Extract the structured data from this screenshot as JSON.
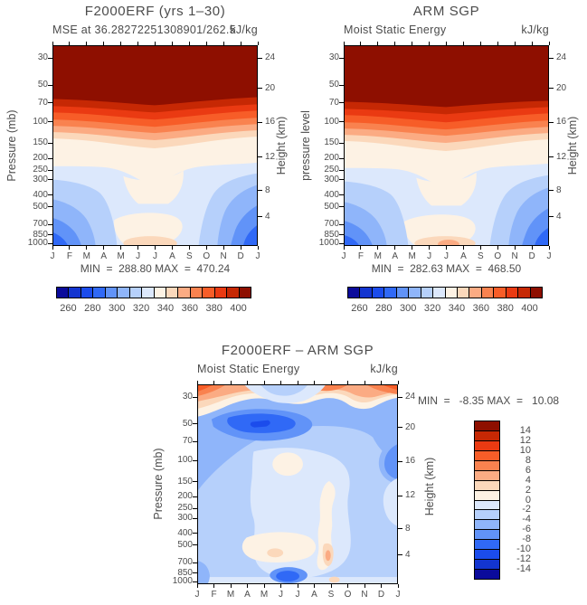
{
  "style": {
    "text_color": "#4c4c4c",
    "axis_color": "#000000",
    "background": "#ffffff",
    "palette": [
      "#0b0b9b",
      "#1335d0",
      "#1b4cec",
      "#3069f6",
      "#6193f8",
      "#8fb5fa",
      "#b6d0fb",
      "#dce8fc",
      "#fdf2e4",
      "#fbd8bb",
      "#fbab83",
      "#f9824f",
      "#f75d28",
      "#ea3a12",
      "#c62804",
      "#8e0f00"
    ]
  },
  "axes": {
    "pressure_ticks": [
      30,
      50,
      70,
      100,
      150,
      200,
      250,
      300,
      400,
      500,
      700,
      850,
      1000
    ],
    "height_ticks": [
      24,
      20,
      16,
      12,
      8,
      4
    ],
    "months": [
      "J",
      "F",
      "M",
      "A",
      "M",
      "J",
      "J",
      "A",
      "S",
      "O",
      "N",
      "D",
      "J"
    ]
  },
  "colorbars": {
    "mse_labels": [
      "260",
      "280",
      "300",
      "320",
      "340",
      "360",
      "380",
      "400"
    ],
    "diff_labels": [
      "14",
      "12",
      "10",
      "8",
      "6",
      "4",
      "2",
      "0",
      "-2",
      "-4",
      "-6",
      "-8",
      "-10",
      "-12",
      "-14"
    ]
  },
  "panels": {
    "top_left": {
      "title": "F2000ERF (yrs 1–30)",
      "subtitle_left": "MSE at 36.28272251308901/262.5",
      "subtitle_right": "kJ/kg",
      "ylabel_left": "Pressure (mb)",
      "ylabel_right": "Height (km)",
      "min_max": "MIN  =  288.80 MAX  =  470.24"
    },
    "top_right": {
      "title": "ARM SGP",
      "subtitle_left": "Moist Static Energy",
      "subtitle_right": "kJ/kg",
      "ylabel_left": "pressure level",
      "ylabel_right": "Height (km)",
      "min_max": "MIN  =  282.63 MAX  =  468.50"
    },
    "bottom": {
      "title": "F2000ERF – ARM SGP",
      "subtitle_left": "Moist Static Energy",
      "subtitle_right": "kJ/kg",
      "ylabel_left": "Pressure (mb)",
      "ylabel_right": "Height (km)",
      "min_max": "MIN  =   -8.35 MAX  =   10.08"
    }
  },
  "chart_data": [
    {
      "type": "contour",
      "title": "F2000ERF (yrs 1–30)",
      "subtitle": "MSE at 36.28272251308901/262.5",
      "units": "kJ/kg",
      "x_ticklabels": [
        "J",
        "F",
        "M",
        "A",
        "M",
        "J",
        "J",
        "A",
        "S",
        "O",
        "N",
        "D",
        "J"
      ],
      "ylabel_left": "Pressure (mb)",
      "ylabel_right": "Height (km)",
      "y_ticks_pressure_mb": [
        30,
        50,
        70,
        100,
        150,
        200,
        250,
        300,
        400,
        500,
        700,
        850,
        1000
      ],
      "y_ticks_height_km": [
        24,
        20,
        16,
        12,
        8,
        4
      ],
      "y_scale": "log-pressure, 1000 mb at bottom",
      "levels": [
        260,
        270,
        280,
        290,
        300,
        310,
        320,
        330,
        340,
        350,
        360,
        370,
        380,
        390,
        400
      ],
      "min": 288.8,
      "max": 470.24,
      "legend": "horizontal colorbar, 16 cells, blue(260)-to-red(400)",
      "field_summary": "MSE > 400 above ~60 mb (dark red cap over top ~30% of panel); banded decrease 400→340 between ~60 and 200 mb; ~330-340 (cream) column mid-troposphere widening in summer months and reaching the surface; 290-310 (blue) lobes in the lower troposphere during winter months at both left and right edges, minima ~289 near 850 mb; weak ~340-350 (peach) surface maximum centered on J-A"
    },
    {
      "type": "contour",
      "title": "ARM SGP",
      "subtitle": "Moist Static Energy",
      "units": "kJ/kg",
      "x_ticklabels": [
        "J",
        "F",
        "M",
        "A",
        "M",
        "J",
        "J",
        "A",
        "S",
        "O",
        "N",
        "D",
        "J"
      ],
      "ylabel_left": "pressure level",
      "ylabel_right": "Height (km)",
      "y_ticks_pressure_mb": [
        30,
        50,
        70,
        100,
        150,
        200,
        250,
        300,
        400,
        500,
        700,
        850,
        1000
      ],
      "y_ticks_height_km": [
        24,
        20,
        16,
        12,
        8,
        4
      ],
      "y_scale": "log-pressure, 1000 mb at bottom",
      "levels": [
        260,
        270,
        280,
        290,
        300,
        310,
        320,
        330,
        340,
        350,
        360,
        370,
        380,
        390,
        400
      ],
      "min": 282.63,
      "max": 468.5,
      "legend": "horizontal colorbar, 16 cells, blue(260)-to-red(400)",
      "field_summary": "Same structure as model panel: >400 cap above ~60 mb, banded transition to ~340 near 200 mb, cream summer column to the surface with a small ~350 (salmon) surface maximum in late summer, and 280-310 blue winter lobes in the lower troposphere at both edges"
    },
    {
      "type": "contour",
      "title": "F2000ERF – ARM SGP",
      "subtitle": "Moist Static Energy",
      "units": "kJ/kg",
      "x_ticklabels": [
        "J",
        "F",
        "M",
        "A",
        "M",
        "J",
        "J",
        "A",
        "S",
        "O",
        "N",
        "D",
        "J"
      ],
      "ylabel_left": "Pressure (mb)",
      "ylabel_right": "Height (km)",
      "y_ticks_pressure_mb": [
        30,
        50,
        70,
        100,
        150,
        200,
        250,
        300,
        400,
        500,
        700,
        850,
        1000
      ],
      "y_ticks_height_km": [
        24,
        20,
        16,
        12,
        8,
        4
      ],
      "y_scale": "log-pressure, 1000 mb at bottom",
      "levels": [
        -14,
        -12,
        -10,
        -8,
        -6,
        -4,
        -2,
        0,
        2,
        4,
        6,
        8,
        10,
        12,
        14
      ],
      "min": -8.35,
      "max": 10.08,
      "legend": "vertical colorbar at right, 16 cells, dark red (+14) on top to dark navy (-14) at bottom",
      "field_summary": "Difference field mostly negative (blue, -2 to -6) through the troposphere and lower stratosphere; strongest negative blob (-6 to -8, min -8.35) near 50-70 mb in Feb-May; positive band (+2 to +6) along the 30 mb top edge except a near-zero gap in Apr-Jun; weak positive (0 to +4, max 10.08) patches near 150 mb in June, in a narrow vertical streak near September from 300-900 mb, and near the surface May-July; small strong negative (-6) spot at ~1000 mb in Jun-Aug"
    }
  ]
}
